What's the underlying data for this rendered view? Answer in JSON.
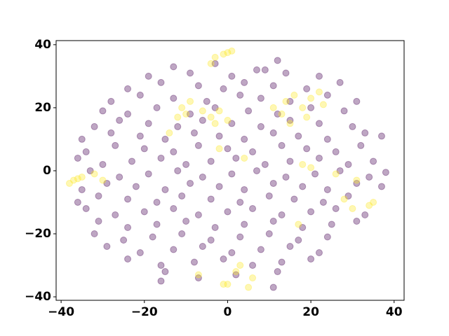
{
  "chart_data": {
    "type": "scatter",
    "xlim": [
      -41.2,
      42.4
    ],
    "ylim": [
      -41.1,
      41.3
    ],
    "xticks": [
      {
        "value": -40,
        "label": "−40"
      },
      {
        "value": -20,
        "label": "−20"
      },
      0,
      20,
      40
    ],
    "yticks": [
      {
        "value": -40,
        "label": "−40"
      },
      {
        "value": -20,
        "label": "−20"
      },
      0,
      20,
      40
    ],
    "series": [
      {
        "color": "#440154",
        "x": [
          -13,
          -3,
          7,
          12,
          -19,
          -9,
          1,
          9,
          14,
          22,
          -24,
          -16,
          -7,
          -1,
          4,
          11,
          19,
          27,
          -28,
          -21,
          -13,
          -5,
          3,
          8,
          15,
          24,
          31,
          -30,
          -24,
          -17,
          -9,
          -3,
          5,
          12,
          20,
          28,
          -32,
          -26,
          -19,
          -12,
          -6,
          1,
          8,
          15,
          22,
          30,
          -35,
          -28,
          -21,
          -15,
          -8,
          -2,
          4,
          11,
          17,
          24,
          33,
          37,
          -34,
          -27,
          -20,
          -13,
          -7,
          0,
          6,
          13,
          19,
          26,
          32,
          -36,
          -30,
          -23,
          -16,
          -10,
          -4,
          2,
          9,
          15,
          22,
          29,
          35,
          -33,
          -26,
          -19,
          -12,
          -6,
          1,
          7,
          14,
          21,
          27,
          34,
          38,
          -35,
          -29,
          -22,
          -15,
          -9,
          -2,
          4,
          11,
          18,
          24,
          31,
          37,
          -36,
          -31,
          -24,
          -17,
          -11,
          -4,
          3,
          10,
          16,
          23,
          29,
          -34,
          -27,
          -20,
          -13,
          -7,
          0,
          6,
          13,
          20,
          26,
          33,
          -31,
          -24,
          -17,
          -10,
          -3,
          4,
          11,
          18,
          25,
          31,
          -32,
          -25,
          -18,
          -11,
          -4,
          3,
          10,
          17,
          24,
          -29,
          -21,
          -13,
          -6,
          1,
          8,
          15,
          22,
          -24,
          -16,
          -8,
          -1,
          6,
          13,
          20,
          -15,
          -7,
          2,
          12,
          -16,
          11
        ],
        "values": [
          33,
          34,
          32,
          35,
          30,
          31,
          30,
          32,
          31,
          30,
          26,
          28,
          27,
          26,
          28,
          27,
          26,
          28,
          22,
          24,
          23,
          22,
          24,
          23,
          22,
          24,
          22,
          19,
          18,
          20,
          18,
          20,
          19,
          18,
          20,
          19,
          14,
          16,
          15,
          14,
          16,
          15,
          14,
          16,
          15,
          14,
          10,
          12,
          11,
          10,
          12,
          11,
          10,
          12,
          11,
          10,
          12,
          11,
          6,
          8,
          7,
          6,
          8,
          7,
          6,
          8,
          7,
          6,
          8,
          4,
          2,
          3,
          4,
          2,
          3,
          4,
          2,
          3,
          4,
          2,
          3,
          0,
          -2,
          -1,
          0,
          -2,
          -1,
          0,
          -2,
          -1,
          0,
          -2,
          -0.5,
          -6,
          -4,
          -5,
          -6,
          -4,
          -5,
          -6,
          -4,
          -5,
          -6,
          -4,
          -5,
          -10,
          -8,
          -9,
          -10,
          -8,
          -9,
          -10,
          -8,
          -9,
          -10,
          -8,
          -12,
          -14,
          -13,
          -12,
          -14,
          -13,
          -12,
          -14,
          -13,
          -12,
          -14,
          -16,
          -18,
          -17,
          -16,
          -18,
          -17,
          -16,
          -18,
          -17,
          -16,
          -20,
          -22,
          -21,
          -20,
          -22,
          -21,
          -20,
          -22,
          -21,
          -24,
          -26,
          -25,
          -24,
          -26,
          -25,
          -24,
          -26,
          -28,
          -30,
          -29,
          -28,
          -30,
          -29,
          -28,
          -32,
          -34,
          -33,
          -32,
          -35,
          -37
        ]
      },
      {
        "color": "#fde725",
        "x": [
          -38,
          -37,
          -36,
          -35,
          -32,
          -30,
          -4,
          -3,
          -1,
          0,
          1,
          -11,
          -10,
          -12,
          -9,
          -6,
          -4,
          -2,
          0,
          -3,
          11,
          13,
          14,
          16,
          18,
          19,
          20,
          22,
          23,
          15,
          -14,
          -2,
          4,
          18,
          20,
          26,
          28,
          30,
          34,
          35,
          17,
          -1,
          0,
          2,
          3,
          5,
          6,
          -7,
          31
        ],
        "values": [
          -4,
          -3,
          -2.5,
          -2,
          -1,
          -3,
          34,
          36,
          37,
          37.5,
          38,
          20,
          18,
          17,
          22,
          19,
          17,
          19,
          16,
          15,
          20,
          18,
          22,
          24,
          20,
          17,
          23,
          25,
          21,
          15,
          12,
          7,
          4,
          2,
          1,
          -1,
          -9,
          -12,
          -11,
          -10,
          -17,
          -36,
          -36,
          -32,
          -30,
          -37,
          -34,
          -33,
          -3
        ]
      }
    ]
  }
}
